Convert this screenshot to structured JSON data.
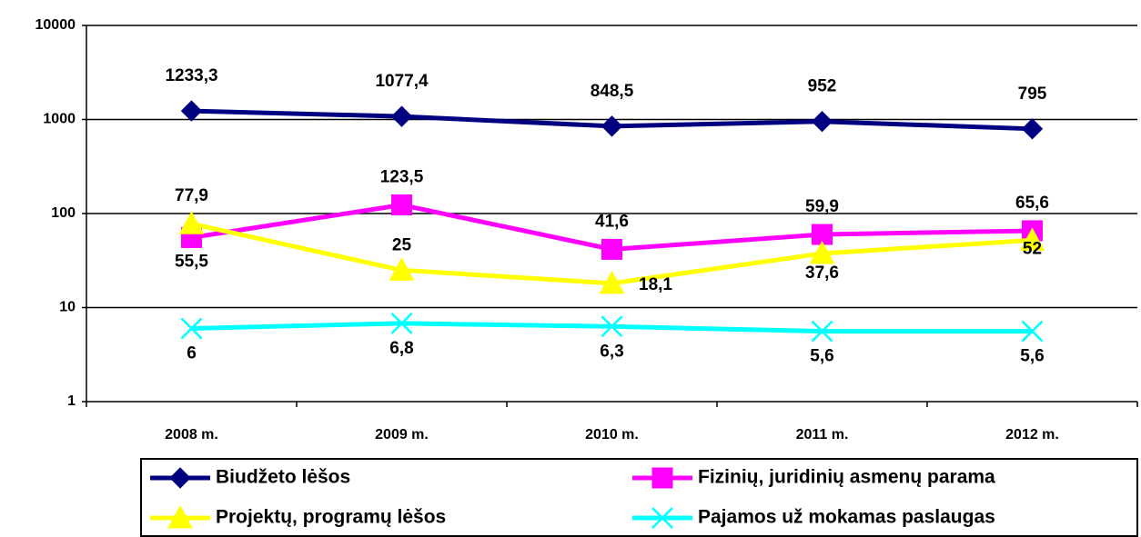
{
  "chart_data": {
    "type": "line",
    "categories": [
      "2008 m.",
      "2009 m.",
      "2010 m.",
      "2011 m.",
      "2012 m."
    ],
    "series": [
      {
        "name": "Biudžeto lėšos",
        "color": "#000080",
        "marker": "diamond",
        "values": [
          1233.3,
          1077.4,
          848.5,
          952,
          795
        ],
        "value_labels": [
          "1233,3",
          "1077,4",
          "848,5",
          "952",
          "795"
        ]
      },
      {
        "name": "Fizinių, juridinių asmenų parama",
        "color": "#ff00ff",
        "marker": "square",
        "values": [
          55.5,
          123.5,
          41.6,
          59.9,
          65.6
        ],
        "value_labels": [
          "55,5",
          "123,5",
          "41,6",
          "59,9",
          "65,6"
        ]
      },
      {
        "name": "Projektų, programų lėšos",
        "color": "#ffff00",
        "marker": "triangle",
        "values": [
          77.9,
          25,
          18.1,
          37.6,
          52
        ],
        "value_labels": [
          "77,9",
          "25",
          "18,1",
          "37,6",
          "52"
        ]
      },
      {
        "name": "Pajamos už mokamas paslaugas",
        "color": "#00ffff",
        "marker": "x",
        "values": [
          6,
          6.8,
          6.3,
          5.6,
          5.6
        ],
        "value_labels": [
          "6",
          "6,8",
          "6,3",
          "5,6",
          "5,6"
        ]
      }
    ],
    "ylim": [
      1,
      10000
    ],
    "yticks": [
      1,
      10,
      100,
      1000,
      10000
    ],
    "log_y": true,
    "grid": true,
    "legend": "bottom"
  }
}
